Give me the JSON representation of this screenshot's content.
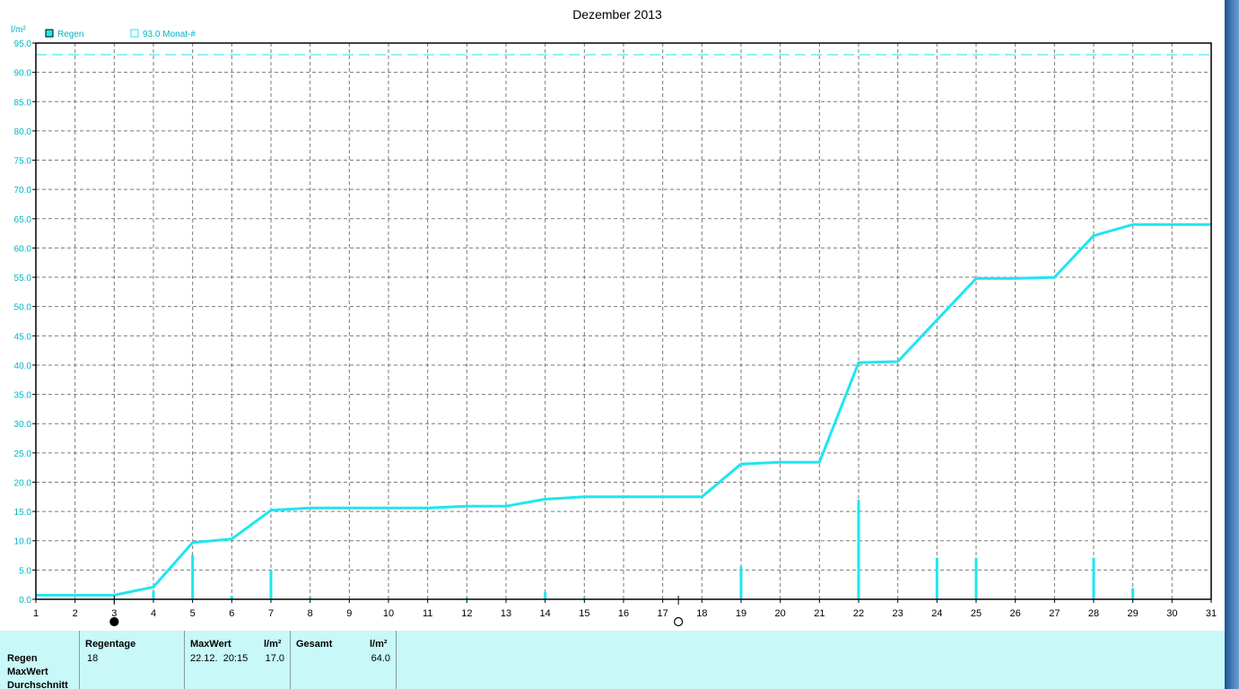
{
  "chart_data": {
    "type": "line",
    "title": "Dezember 2013",
    "ylabel": "l/m²",
    "xlabel": "",
    "ylim": [
      0,
      95
    ],
    "xlim": [
      1,
      31
    ],
    "y_ticks": [
      "0.0",
      "5.0",
      "10.0",
      "15.0",
      "20.0",
      "25.0",
      "30.0",
      "35.0",
      "40.0",
      "45.0",
      "50.0",
      "55.0",
      "60.0",
      "65.0",
      "70.0",
      "75.0",
      "80.0",
      "85.0",
      "90.0",
      "95.0"
    ],
    "x_ticks": [
      "1",
      "2",
      "3",
      "4",
      "5",
      "6",
      "7",
      "8",
      "9",
      "10",
      "11",
      "12",
      "13",
      "14",
      "15",
      "16",
      "17",
      "18",
      "19",
      "20",
      "21",
      "22",
      "23",
      "24",
      "25",
      "26",
      "27",
      "28",
      "29",
      "30",
      "31"
    ],
    "grid": true,
    "legend": [
      {
        "label": "Regen",
        "marker": "filled-square"
      },
      {
        "label": "93.0 Monat-#",
        "marker": "open-square"
      }
    ],
    "series": [
      {
        "name": "Regen",
        "kind": "cumulative-line",
        "x": [
          1,
          2,
          3,
          4,
          5,
          6,
          7,
          8,
          9,
          10,
          11,
          12,
          13,
          14,
          15,
          16,
          17,
          18,
          19,
          20,
          21,
          22,
          23,
          24,
          25,
          26,
          27,
          28,
          29,
          30,
          31
        ],
        "values": [
          0.7,
          0.7,
          0.7,
          2.1,
          9.7,
          10.3,
          15.2,
          15.6,
          15.6,
          15.6,
          15.6,
          15.9,
          15.9,
          17.1,
          17.5,
          17.5,
          17.5,
          17.5,
          23.1,
          23.4,
          23.4,
          40.4,
          40.6,
          47.7,
          54.8,
          54.8,
          55.0,
          62.1,
          64.0,
          64.0,
          64.0
        ]
      },
      {
        "name": "Regen",
        "kind": "daily-bars",
        "x": [
          4,
          5,
          6,
          7,
          8,
          12,
          14,
          15,
          19,
          22,
          24,
          25,
          28,
          29
        ],
        "values": [
          1.4,
          7.6,
          0.6,
          4.9,
          0.4,
          0.3,
          1.2,
          0.4,
          5.6,
          17.0,
          7.1,
          7.1,
          7.1,
          1.9
        ]
      },
      {
        "name": "93.0 Monat-#",
        "kind": "reference-line",
        "value": 93.0
      }
    ],
    "markers": [
      {
        "x": 3,
        "symbol": "full-moon-icon"
      },
      {
        "x": 17.4,
        "symbol": "new-moon-icon"
      }
    ],
    "colors": {
      "series": "#1ee6f0",
      "grid": "#7a7a7a",
      "frame": "#000000",
      "panel": "#c8f8f8"
    }
  },
  "stats": {
    "row_labels": [
      "Regen",
      "MaxWert",
      "Durchschnitt"
    ],
    "headers": {
      "regentage": "Regentage",
      "maxwert": "MaxWert",
      "unit1": "l/m²",
      "gesamt": "Gesamt",
      "unit2": "l/m²"
    },
    "values": {
      "regentage": "18",
      "maxwert_date": "22.12.  20:15",
      "maxwert_value": "17.0",
      "gesamt": "64.0"
    }
  }
}
